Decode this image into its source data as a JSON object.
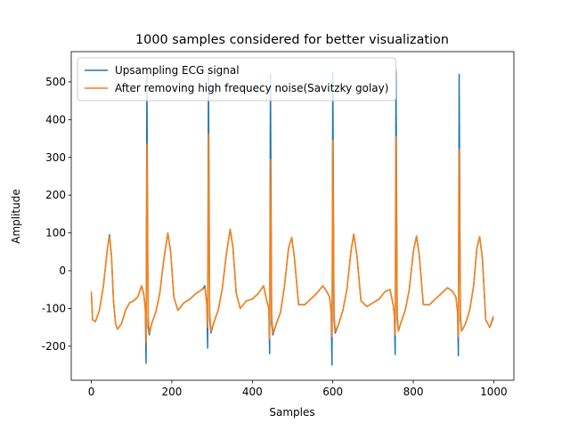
{
  "chart_data": {
    "type": "line",
    "title": "1000 samples considered for better visualization",
    "x_label": "Samples",
    "y_label": "Amplitude",
    "xlim": [
      -50,
      1050
    ],
    "ylim": [
      -290,
      580
    ],
    "xticks": [
      0,
      200,
      400,
      600,
      800,
      1000
    ],
    "yticks": [
      -200,
      -100,
      0,
      100,
      200,
      300,
      400,
      500
    ],
    "legend": "upper left",
    "grid": false,
    "x": [
      0,
      3,
      10,
      20,
      30,
      40,
      45,
      50,
      55,
      60,
      65,
      75,
      85,
      95,
      105,
      115,
      125,
      130,
      134,
      136,
      138,
      141,
      144,
      150,
      160,
      170,
      180,
      190,
      197,
      205,
      215,
      230,
      245,
      260,
      275,
      282,
      287,
      289,
      291,
      294,
      297,
      305,
      315,
      325,
      335,
      345,
      352,
      360,
      370,
      385,
      400,
      415,
      428,
      436,
      441,
      443,
      445,
      448,
      451,
      460,
      470,
      480,
      490,
      498,
      505,
      515,
      530,
      545,
      560,
      575,
      585,
      592,
      596,
      598,
      600,
      603,
      606,
      615,
      625,
      635,
      645,
      652,
      660,
      670,
      685,
      700,
      715,
      730,
      742,
      750,
      753,
      755,
      757,
      760,
      763,
      770,
      780,
      790,
      800,
      808,
      815,
      825,
      840,
      855,
      870,
      885,
      898,
      906,
      910,
      912,
      914,
      917,
      920,
      930,
      940,
      950,
      958,
      965,
      972,
      980,
      990,
      999
    ],
    "series": [
      {
        "name": "Upsampling ECG signal",
        "color": "#1f77b4",
        "values": [
          -60,
          -130,
          -135,
          -105,
          -40,
          60,
          95,
          40,
          -80,
          -140,
          -155,
          -140,
          -105,
          -85,
          -80,
          -70,
          -40,
          -60,
          -100,
          -245,
          520,
          -150,
          -170,
          -140,
          -110,
          -60,
          30,
          100,
          50,
          -70,
          -105,
          -85,
          -75,
          -60,
          -50,
          -40,
          -90,
          -205,
          525,
          -130,
          -165,
          -135,
          -105,
          -50,
          40,
          110,
          60,
          -60,
          -100,
          -80,
          -75,
          -60,
          -40,
          -80,
          -100,
          -220,
          520,
          -140,
          -170,
          -140,
          -110,
          -40,
          60,
          88,
          30,
          -90,
          -90,
          -75,
          -60,
          -40,
          -55,
          -70,
          -110,
          -250,
          525,
          -130,
          -165,
          -140,
          -105,
          -50,
          50,
          97,
          40,
          -80,
          -95,
          -85,
          -75,
          -55,
          -50,
          -90,
          -120,
          -222,
          530,
          -130,
          -160,
          -135,
          -105,
          -50,
          50,
          92,
          40,
          -90,
          -90,
          -75,
          -60,
          -45,
          -55,
          -70,
          -110,
          -225,
          520,
          -130,
          -160,
          -140,
          -105,
          -40,
          60,
          90,
          30,
          -130,
          -150,
          -125
        ]
      },
      {
        "name": "After removing high frequecy noise(Savitzky golay)",
        "color": "#ff7f0e",
        "values": [
          -55,
          -130,
          -135,
          -105,
          -40,
          60,
          90,
          40,
          -80,
          -140,
          -155,
          -140,
          -105,
          -85,
          -80,
          -70,
          -40,
          -60,
          -100,
          -190,
          335,
          -120,
          -165,
          -140,
          -110,
          -60,
          30,
          100,
          50,
          -70,
          -105,
          -85,
          -75,
          -60,
          -50,
          -45,
          -90,
          -150,
          362,
          -110,
          -160,
          -135,
          -105,
          -50,
          40,
          110,
          60,
          -60,
          -100,
          -80,
          -75,
          -60,
          -40,
          -80,
          -100,
          -180,
          295,
          -110,
          -165,
          -140,
          -110,
          -40,
          60,
          88,
          30,
          -90,
          -90,
          -75,
          -60,
          -40,
          -55,
          -70,
          -110,
          -175,
          345,
          -110,
          -160,
          -140,
          -105,
          -50,
          50,
          97,
          40,
          -80,
          -95,
          -85,
          -75,
          -55,
          -50,
          -90,
          -120,
          -170,
          355,
          -110,
          -160,
          -135,
          -105,
          -50,
          50,
          92,
          40,
          -90,
          -90,
          -75,
          -60,
          -45,
          -55,
          -70,
          -110,
          -175,
          322,
          -110,
          -160,
          -140,
          -105,
          -40,
          60,
          90,
          30,
          -130,
          -150,
          -120
        ]
      }
    ]
  }
}
